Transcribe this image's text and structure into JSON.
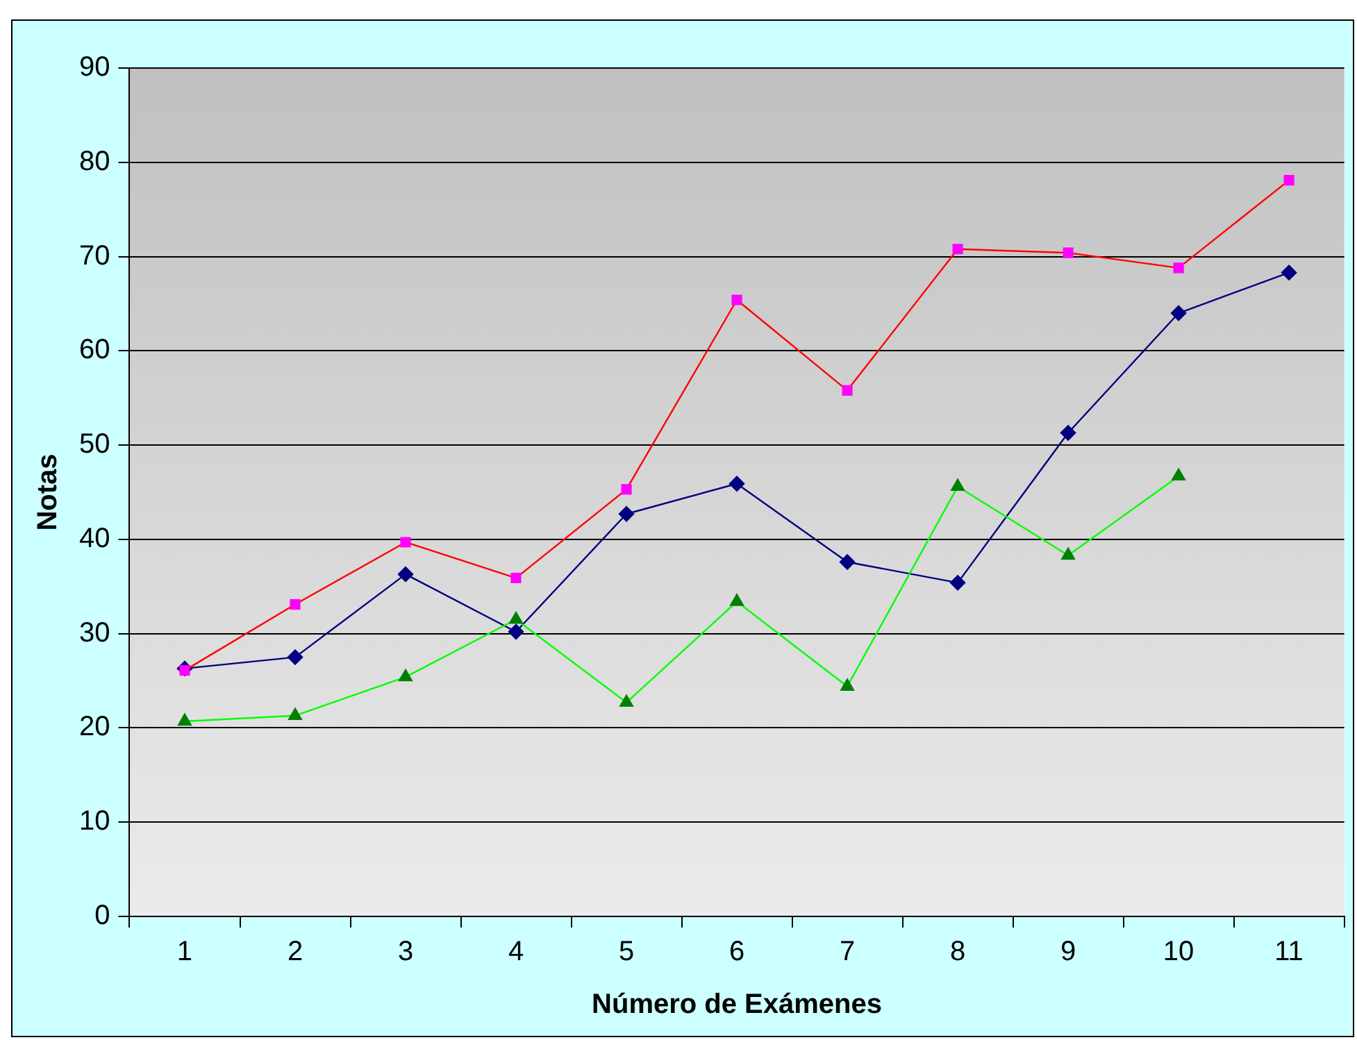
{
  "chart_data": {
    "type": "line",
    "xlabel": "Número de Exámenes",
    "ylabel": "Notas",
    "categories": [
      "1",
      "2",
      "3",
      "4",
      "5",
      "6",
      "7",
      "8",
      "9",
      "10",
      "11"
    ],
    "series": [
      {
        "color": "#000080",
        "colors": [
          "#000080",
          "#000080",
          "#000080",
          "#000080",
          "#000080",
          "#000080",
          "#000080",
          "#000080",
          "#000080",
          "#000080",
          "#000080"
        ],
        "marker": "diamond",
        "values": [
          26.3,
          27.5,
          36.3,
          30.2,
          42.7,
          45.9,
          37.6,
          35.4,
          51.3,
          64.0,
          68.3
        ]
      },
      {
        "color": "#ff0000",
        "colors": [
          "#ff00ff",
          "#ff00ff",
          "#ff00ff",
          "#ff00ff",
          "#ff00ff",
          "#ff00ff",
          "#ff00ff",
          "#ff00ff",
          "#ff00ff",
          "#ff00ff",
          "#ff00ff"
        ],
        "marker": "square",
        "values": [
          26.1,
          33.1,
          39.7,
          35.9,
          45.3,
          65.4,
          55.8,
          70.8,
          70.4,
          68.8,
          78.1
        ]
      },
      {
        "color": "#00ff00",
        "colors": [
          "#008000",
          "#008000",
          "#008000",
          "#008000",
          "#008000",
          "#008000",
          "#008000",
          "#008000",
          "#008000",
          "#008000",
          null
        ],
        "marker": "triangle",
        "values": [
          20.7,
          21.3,
          25.4,
          31.5,
          22.7,
          33.4,
          24.4,
          45.6,
          38.3,
          46.7,
          null
        ]
      }
    ],
    "ylim": [
      0,
      90
    ],
    "yticks": [
      0,
      10,
      20,
      30,
      40,
      50,
      60,
      70,
      80,
      90
    ],
    "grid": "y",
    "legend": false
  }
}
